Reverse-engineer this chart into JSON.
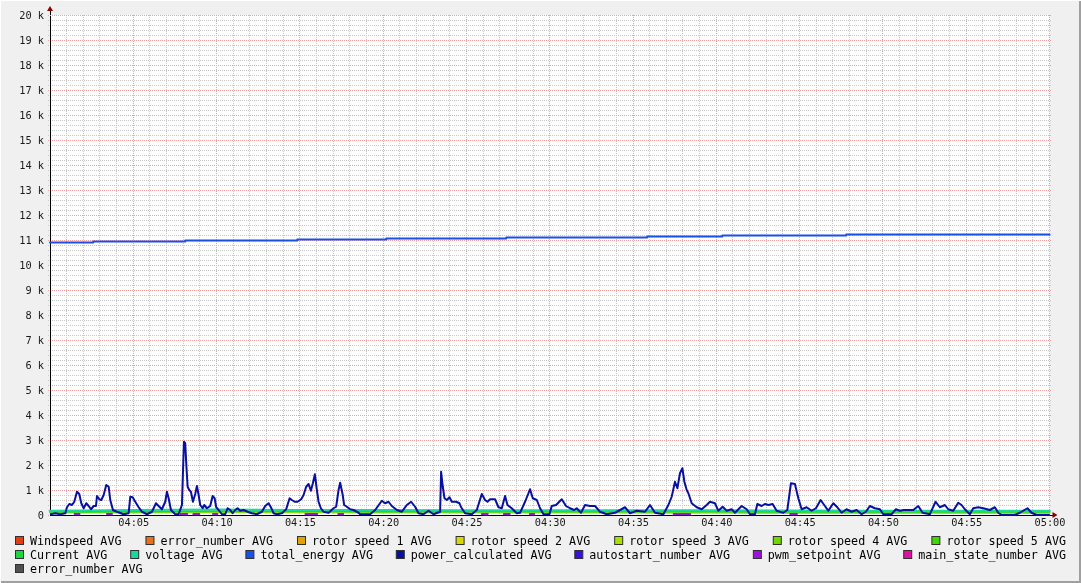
{
  "chart_data": {
    "type": "line",
    "xlim": [
      4,
      5
    ],
    "ylim": [
      0,
      20000
    ],
    "xticks": [
      {
        "value": 4.0167,
        "label": null
      },
      {
        "value": 4.0333,
        "label": null
      },
      {
        "value": 4.05,
        "label": null
      },
      {
        "value": 4.0667,
        "label": null
      },
      {
        "value": 4.0833,
        "label": "04:05"
      },
      {
        "value": 4.1,
        "label": null
      },
      {
        "value": 4.1167,
        "label": null
      },
      {
        "value": 4.1333,
        "label": null
      },
      {
        "value": 4.15,
        "label": null
      },
      {
        "value": 4.1667,
        "label": "04:10"
      },
      {
        "value": 4.1833,
        "label": null
      },
      {
        "value": 4.2,
        "label": null
      },
      {
        "value": 4.2167,
        "label": null
      },
      {
        "value": 4.2333,
        "label": null
      },
      {
        "value": 4.25,
        "label": "04:15"
      },
      {
        "value": 4.2667,
        "label": null
      },
      {
        "value": 4.2833,
        "label": null
      },
      {
        "value": 4.3,
        "label": null
      },
      {
        "value": 4.3167,
        "label": null
      },
      {
        "value": 4.3333,
        "label": "04:20"
      },
      {
        "value": 4.35,
        "label": null
      },
      {
        "value": 4.3667,
        "label": null
      },
      {
        "value": 4.3833,
        "label": null
      },
      {
        "value": 4.4,
        "label": null
      },
      {
        "value": 4.4167,
        "label": "04:25"
      },
      {
        "value": 4.4333,
        "label": null
      },
      {
        "value": 4.45,
        "label": null
      },
      {
        "value": 4.4667,
        "label": null
      },
      {
        "value": 4.4833,
        "label": null
      },
      {
        "value": 4.5,
        "label": "04:30"
      },
      {
        "value": 4.5167,
        "label": null
      },
      {
        "value": 4.5333,
        "label": null
      },
      {
        "value": 4.55,
        "label": null
      },
      {
        "value": 4.5667,
        "label": null
      },
      {
        "value": 4.5833,
        "label": "04:35"
      },
      {
        "value": 4.6,
        "label": null
      },
      {
        "value": 4.6167,
        "label": null
      },
      {
        "value": 4.6333,
        "label": null
      },
      {
        "value": 4.65,
        "label": null
      },
      {
        "value": 4.6667,
        "label": "04:40"
      },
      {
        "value": 4.6833,
        "label": null
      },
      {
        "value": 4.7,
        "label": null
      },
      {
        "value": 4.7167,
        "label": null
      },
      {
        "value": 4.7333,
        "label": null
      },
      {
        "value": 4.75,
        "label": "04:45"
      },
      {
        "value": 4.7667,
        "label": null
      },
      {
        "value": 4.7833,
        "label": null
      },
      {
        "value": 4.8,
        "label": null
      },
      {
        "value": 4.8167,
        "label": null
      },
      {
        "value": 4.8333,
        "label": "04:50"
      },
      {
        "value": 4.85,
        "label": null
      },
      {
        "value": 4.8667,
        "label": null
      },
      {
        "value": 4.8833,
        "label": null
      },
      {
        "value": 4.9,
        "label": null
      },
      {
        "value": 4.9167,
        "label": "04:55"
      },
      {
        "value": 4.9333,
        "label": null
      },
      {
        "value": 4.95,
        "label": null
      },
      {
        "value": 4.9667,
        "label": null
      },
      {
        "value": 4.9833,
        "label": null
      },
      {
        "value": 5,
        "label": "05:00"
      }
    ],
    "yticks": [
      0,
      {
        "value": 200,
        "label": null
      },
      {
        "value": 400,
        "label": null
      },
      {
        "value": 600,
        "label": null
      },
      {
        "value": 800,
        "label": null
      },
      {
        "value": 1000,
        "label": "1 k"
      },
      {
        "value": 1200,
        "label": null
      },
      {
        "value": 1400,
        "label": null
      },
      {
        "value": 1600,
        "label": null
      },
      {
        "value": 1800,
        "label": null
      },
      {
        "value": 2000,
        "label": "2 k"
      },
      {
        "value": 2200,
        "label": null
      },
      {
        "value": 2400,
        "label": null
      },
      {
        "value": 2600,
        "label": null
      },
      {
        "value": 2800,
        "label": null
      },
      {
        "value": 3000,
        "label": "3 k"
      },
      {
        "value": 3200,
        "label": null
      },
      {
        "value": 3400,
        "label": null
      },
      {
        "value": 3600,
        "label": null
      },
      {
        "value": 3800,
        "label": null
      },
      {
        "value": 4000,
        "label": "4 k"
      },
      {
        "value": 4200,
        "label": null
      },
      {
        "value": 4400,
        "label": null
      },
      {
        "value": 4600,
        "label": null
      },
      {
        "value": 4800,
        "label": null
      },
      {
        "value": 5000,
        "label": "5 k"
      },
      {
        "value": 5200,
        "label": null
      },
      {
        "value": 5400,
        "label": null
      },
      {
        "value": 5600,
        "label": null
      },
      {
        "value": 5800,
        "label": null
      },
      {
        "value": 6000,
        "label": "6 k"
      },
      {
        "value": 6200,
        "label": null
      },
      {
        "value": 6400,
        "label": null
      },
      {
        "value": 6600,
        "label": null
      },
      {
        "value": 6800,
        "label": null
      },
      {
        "value": 7000,
        "label": "7 k"
      },
      {
        "value": 7200,
        "label": null
      },
      {
        "value": 7400,
        "label": null
      },
      {
        "value": 7600,
        "label": null
      },
      {
        "value": 7800,
        "label": null
      },
      {
        "value": 8000,
        "label": "8 k"
      },
      {
        "value": 8200,
        "label": null
      },
      {
        "value": 8400,
        "label": null
      },
      {
        "value": 8600,
        "label": null
      },
      {
        "value": 8800,
        "label": null
      },
      {
        "value": 9000,
        "label": "9 k"
      },
      {
        "value": 9200,
        "label": null
      },
      {
        "value": 9400,
        "label": null
      },
      {
        "value": 9600,
        "label": null
      },
      {
        "value": 9800,
        "label": null
      },
      {
        "value": 10000,
        "label": "10 k"
      },
      {
        "value": 10200,
        "label": null
      },
      {
        "value": 10400,
        "label": null
      },
      {
        "value": 10600,
        "label": null
      },
      {
        "value": 10800,
        "label": null
      },
      {
        "value": 11000,
        "label": "11 k"
      },
      {
        "value": 11200,
        "label": null
      },
      {
        "value": 11400,
        "label": null
      },
      {
        "value": 11600,
        "label": null
      },
      {
        "value": 11800,
        "label": null
      },
      {
        "value": 12000,
        "label": "12 k"
      },
      {
        "value": 12200,
        "label": null
      },
      {
        "value": 12400,
        "label": null
      },
      {
        "value": 12600,
        "label": null
      },
      {
        "value": 12800,
        "label": null
      },
      {
        "value": 13000,
        "label": "13 k"
      },
      {
        "value": 13200,
        "label": null
      },
      {
        "value": 13400,
        "label": null
      },
      {
        "value": 13600,
        "label": null
      },
      {
        "value": 13800,
        "label": null
      },
      {
        "value": 14000,
        "label": "14 k"
      },
      {
        "value": 14200,
        "label": null
      },
      {
        "value": 14400,
        "label": null
      },
      {
        "value": 14600,
        "label": null
      },
      {
        "value": 14800,
        "label": null
      },
      {
        "value": 15000,
        "label": "15 k"
      },
      {
        "value": 15200,
        "label": null
      },
      {
        "value": 15400,
        "label": null
      },
      {
        "value": 15600,
        "label": null
      },
      {
        "value": 15800,
        "label": null
      },
      {
        "value": 16000,
        "label": "16 k"
      },
      {
        "value": 16200,
        "label": null
      },
      {
        "value": 16400,
        "label": null
      },
      {
        "value": 16600,
        "label": null
      },
      {
        "value": 16800,
        "label": null
      },
      {
        "value": 17000,
        "label": "17 k"
      },
      {
        "value": 17200,
        "label": null
      },
      {
        "value": 17400,
        "label": null
      },
      {
        "value": 17600,
        "label": null
      },
      {
        "value": 17800,
        "label": null
      },
      {
        "value": 18000,
        "label": "18 k"
      },
      {
        "value": 18200,
        "label": null
      },
      {
        "value": 18400,
        "label": null
      },
      {
        "value": 18600,
        "label": null
      },
      {
        "value": 18800,
        "label": null
      },
      {
        "value": 19000,
        "label": "19 k"
      },
      {
        "value": 19200,
        "label": null
      },
      {
        "value": 19400,
        "label": null
      },
      {
        "value": 19600,
        "label": null
      },
      {
        "value": 19800,
        "label": null
      },
      {
        "value": 20000,
        "label": "20 k"
      }
    ],
    "grid": true,
    "legend": "bottom",
    "series": [
      {
        "name": "Windspeed AVG",
        "color": "#e63c14"
      },
      {
        "name": "error_number AVG",
        "color": "#e8701a"
      },
      {
        "name": "rotor speed 1 AVG",
        "color": "#e0a400"
      },
      {
        "name": "rotor speed 2 AVG",
        "color": "#d8d800"
      },
      {
        "name": "rotor speed 3 AVG",
        "color": "#a8e000",
        "x": [
          4,
          4.0833,
          4.1667,
          4.25,
          4.3333,
          4.4167,
          4.5,
          4.5833,
          4.6667,
          4.75,
          4.8333,
          4.9167,
          5
        ],
        "values": [
          100,
          100,
          110,
          110,
          100,
          100,
          100,
          90,
          90,
          80,
          80,
          80,
          80
        ]
      },
      {
        "name": "rotor speed 4 AVG",
        "color": "#70d800"
      },
      {
        "name": "rotor speed 5 AVG",
        "color": "#40d800"
      },
      {
        "name": "Current AVG",
        "color": "#18d840",
        "x": [
          4,
          4.0833,
          4.1667,
          4.25,
          4.3333,
          4.4167,
          4.5,
          4.5833,
          4.6667,
          4.75,
          4.8333,
          4.9167,
          5
        ],
        "values": [
          130,
          140,
          150,
          150,
          140,
          140,
          140,
          140,
          140,
          130,
          130,
          130,
          130
        ]
      },
      {
        "name": "voltage AVG",
        "color": "#18d8a0",
        "x": [
          4,
          4.0833,
          4.1667,
          4.25,
          4.3333,
          4.4167,
          4.5,
          4.5833,
          4.6667,
          4.75,
          4.8333,
          4.9167,
          5
        ],
        "values": [
          170,
          200,
          220,
          200,
          200,
          190,
          190,
          190,
          190,
          180,
          170,
          170,
          170
        ]
      },
      {
        "name": "total_energy AVG",
        "color": "#1850e8",
        "type": "step",
        "x": [
          4,
          4.0433,
          4.1354,
          4.2474,
          4.3364,
          4.4565,
          4.5975,
          4.6726,
          4.7966,
          5
        ],
        "values": [
          10900,
          10940,
          10980,
          11020,
          11060,
          11100,
          11140,
          11180,
          11220,
          11220
        ]
      },
      {
        "name": "power_calculated AVG",
        "color": "#0810a0",
        "x": [
          4.001,
          4.0053,
          4.0103,
          4.0153,
          4.017,
          4.0193,
          4.022,
          4.0243,
          4.027,
          4.0293,
          4.0313,
          4.0337,
          4.0363,
          4.0387,
          4.041,
          4.0437,
          4.046,
          4.047,
          4.0493,
          4.0513,
          4.0537,
          4.0563,
          4.0587,
          4.0603,
          4.063,
          4.067,
          4.0737,
          4.0787,
          4.0803,
          4.0827,
          4.0853,
          4.0887,
          4.092,
          4.097,
          4.102,
          4.106,
          4.1087,
          4.112,
          4.1153,
          4.117,
          4.1187,
          4.121,
          4.1253,
          4.1287,
          4.132,
          4.133,
          4.134,
          4.1353,
          4.1363,
          4.1377,
          4.1393,
          4.141,
          4.143,
          4.1453,
          4.147,
          4.1487,
          4.1503,
          4.1527,
          4.1543,
          4.157,
          4.1603,
          4.1627,
          4.1647,
          4.1663,
          4.1687,
          4.172,
          4.1753,
          4.1777,
          4.1803,
          4.1827,
          4.1853,
          4.1877,
          4.1903,
          4.1937,
          4.1977,
          4.202,
          4.207,
          4.212,
          4.2153,
          4.2187,
          4.221,
          4.2237,
          4.227,
          4.232,
          4.2363,
          4.2397,
          4.242,
          4.2447,
          4.2477,
          4.2513,
          4.2537,
          4.2563,
          4.2587,
          4.261,
          4.263,
          4.265,
          4.267,
          4.2687,
          4.271,
          4.2737,
          4.2787,
          4.2837,
          4.2863,
          4.2887,
          4.2903,
          4.2927,
          4.2943,
          4.297,
          4.3003,
          4.3037,
          4.3087,
          4.3103,
          4.3203,
          4.3253,
          4.332,
          4.3353,
          4.3387,
          4.342,
          4.347,
          4.352,
          4.357,
          4.3613,
          4.3653,
          4.3687,
          4.3737,
          4.3787,
          4.3837,
          4.3877,
          4.3903,
          4.3913,
          4.393,
          4.3947,
          4.397,
          4.3997,
          4.402,
          4.4063,
          4.4097,
          4.4113,
          4.4153,
          4.422,
          4.427,
          4.432,
          4.4353,
          4.4377,
          4.4403,
          4.4453,
          4.4487,
          4.452,
          4.4553,
          4.4577,
          4.462,
          4.467,
          4.4703,
          4.4753,
          4.4803,
          4.483,
          4.487,
          4.4903,
          4.4937,
          4.4997,
          4.502,
          4.5063,
          4.512,
          4.5163,
          4.5203,
          4.5243,
          4.527,
          4.5313,
          4.5353,
          4.5403,
          4.5453,
          4.5503,
          4.557,
          4.5653,
          4.5753,
          4.5803,
          4.587,
          4.5953,
          4.6003,
          4.6053,
          4.6137,
          4.6187,
          4.622,
          4.6253,
          4.6277,
          4.6303,
          4.6327,
          4.6347,
          4.637,
          4.6387,
          4.642,
          4.647,
          4.652,
          4.657,
          4.6603,
          4.6653,
          4.6687,
          4.673,
          4.677,
          4.682,
          4.6853,
          4.692,
          4.697,
          4.7003,
          4.7053,
          4.7077,
          4.712,
          4.7153,
          4.7187,
          4.723,
          4.727,
          4.7337,
          4.7377,
          4.7413,
          4.7453,
          4.7487,
          4.752,
          4.757,
          4.762,
          4.7663,
          4.771,
          4.7753,
          4.7787,
          4.7837,
          4.7877,
          4.792,
          4.797,
          4.802,
          4.807,
          4.812,
          4.8163,
          4.8203,
          4.8253,
          4.8303,
          4.8337,
          4.842,
          4.8463,
          4.8503,
          4.8543,
          4.8587,
          4.8637,
          4.8687,
          4.873,
          4.8803,
          4.886,
          4.8903,
          4.8953,
          4.8987,
          4.9037,
          4.9087,
          4.912,
          4.9153,
          4.9203,
          4.9237,
          4.9287,
          4.9337,
          4.9403,
          4.9453,
          4.9487,
          4.952,
          4.9653,
          4.9703,
          4.978,
          4.982,
          4.987,
          4.9997
        ],
        "values": [
          30,
          70,
          30,
          70,
          310,
          440,
          400,
          530,
          930,
          840,
          470,
          270,
          470,
          360,
          230,
          360,
          360,
          760,
          630,
          600,
          800,
          1200,
          1130,
          600,
          200,
          130,
          30,
          70,
          730,
          710,
          530,
          310,
          130,
          30,
          130,
          470,
          360,
          230,
          530,
          930,
          670,
          200,
          30,
          30,
          400,
          1670,
          2930,
          2870,
          2070,
          1130,
          1000,
          930,
          530,
          840,
          1160,
          800,
          400,
          270,
          400,
          270,
          360,
          760,
          670,
          310,
          200,
          30,
          30,
          270,
          200,
          70,
          200,
          270,
          170,
          200,
          130,
          70,
          30,
          130,
          360,
          470,
          310,
          70,
          30,
          70,
          230,
          670,
          600,
          530,
          530,
          630,
          800,
          1130,
          1240,
          970,
          1270,
          1630,
          1000,
          530,
          270,
          130,
          90,
          270,
          330,
          1000,
          1290,
          840,
          400,
          330,
          230,
          200,
          90,
          30,
          30,
          200,
          570,
          470,
          530,
          360,
          200,
          130,
          400,
          530,
          330,
          70,
          30,
          170,
          30,
          90,
          130,
          1730,
          1130,
          670,
          600,
          710,
          530,
          530,
          470,
          310,
          70,
          30,
          200,
          840,
          600,
          530,
          630,
          630,
          310,
          270,
          760,
          400,
          270,
          70,
          90,
          530,
          1030,
          670,
          600,
          270,
          30,
          30,
          360,
          400,
          630,
          360,
          270,
          200,
          270,
          90,
          400,
          360,
          360,
          130,
          30,
          90,
          310,
          70,
          170,
          130,
          400,
          90,
          30,
          400,
          730,
          1330,
          1070,
          1670,
          1870,
          1330,
          1000,
          870,
          470,
          310,
          230,
          400,
          530,
          470,
          170,
          330,
          170,
          230,
          90,
          360,
          230,
          30,
          30,
          440,
          360,
          440,
          400,
          440,
          170,
          90,
          200,
          1270,
          1240,
          670,
          230,
          310,
          170,
          270,
          600,
          360,
          170,
          470,
          310,
          90,
          230,
          130,
          200,
          30,
          130,
          360,
          270,
          230,
          30,
          30,
          230,
          170,
          200,
          200,
          200,
          360,
          90,
          30,
          530,
          310,
          400,
          230,
          170,
          490,
          400,
          230,
          30,
          270,
          310,
          270,
          200,
          310,
          90,
          0,
          0,
          90,
          270,
          90,
          0,
          0
        ]
      },
      {
        "name": "autostart_number AVG",
        "color": "#3810e0"
      },
      {
        "name": "pwm_setpoint AVG",
        "color": "#a010e0",
        "x": [
          4.0246,
          4.0296,
          4.045,
          4.057,
          4.062,
          4.09,
          4.1304,
          4.1374,
          4.14,
          4.1434,
          4.1494,
          4.155,
          4.163,
          4.1675,
          4.2,
          4.2555,
          4.2674,
          4.28,
          4.2884,
          4.2934,
          4.35,
          4.432,
          4.438,
          4.445,
          4.454,
          4.46,
          4.47,
          4.48,
          4.4845,
          4.6,
          4.6239,
          4.6406,
          4.7,
          4.7406,
          4.7473
        ],
        "values": [
          40,
          40,
          null,
          40,
          40,
          null,
          40,
          40,
          null,
          40,
          40,
          null,
          40,
          40,
          null,
          40,
          40,
          null,
          40,
          40,
          null,
          40,
          40,
          null,
          40,
          40,
          null,
          40,
          40,
          null,
          40,
          40,
          null,
          40,
          40
        ]
      },
      {
        "name": "main_state_number AVG",
        "color": "#e010a0"
      },
      {
        "name": "error_number AVG",
        "color": "#505050"
      }
    ]
  }
}
